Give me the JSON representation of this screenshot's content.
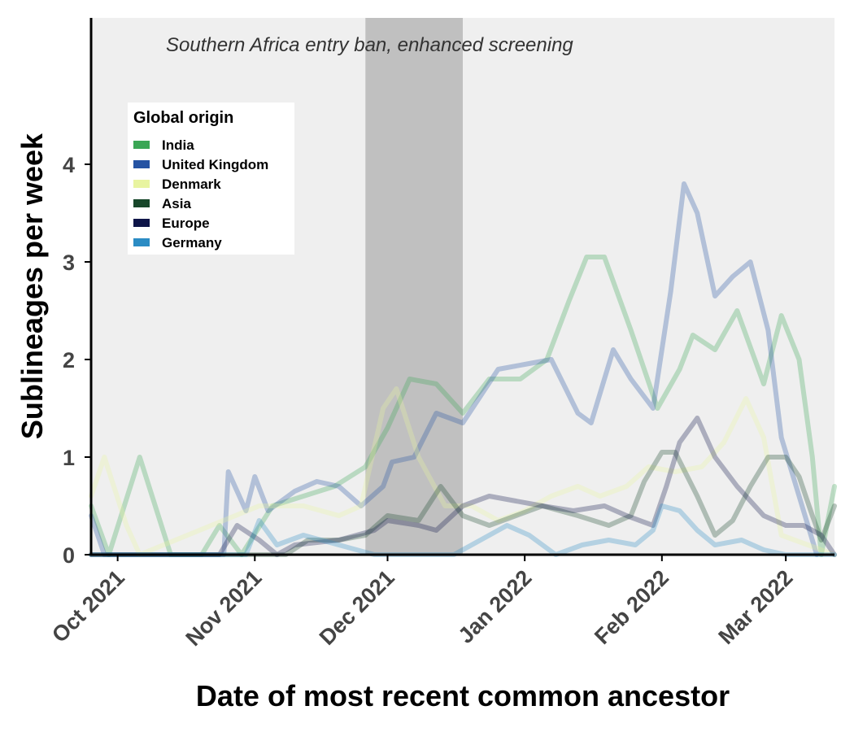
{
  "chart_data": {
    "type": "line",
    "title": "",
    "xlabel": "Date of most recent common ancestor",
    "ylabel": "Sublineages per week",
    "x_range": [
      "2021-09-25",
      "2022-03-12"
    ],
    "ylim": [
      0,
      5.5
    ],
    "y_ticks": [
      0,
      1,
      2,
      3,
      4
    ],
    "x_ticks": [
      {
        "date": "2021-10-01",
        "label": "Oct 2021"
      },
      {
        "date": "2021-11-01",
        "label": "Nov 2021"
      },
      {
        "date": "2021-12-01",
        "label": "Dec 2021"
      },
      {
        "date": "2022-01-01",
        "label": "Jan 2022"
      },
      {
        "date": "2022-02-01",
        "label": "Feb 2022"
      },
      {
        "date": "2022-03-01",
        "label": "Mar 2022"
      }
    ],
    "grid": false,
    "annotation": {
      "text": "Southern Africa entry ban, enhanced screening",
      "shaded_start": "2021-11-26",
      "shaded_end": "2021-12-18"
    },
    "legend_title": "Global origin",
    "legend_position": "top-left",
    "series": [
      {
        "name": "India",
        "color": "#3aa655",
        "points": [
          [
            "2021-09-25",
            0.5
          ],
          [
            "2021-09-29",
            0.0
          ],
          [
            "2021-10-06",
            1.0
          ],
          [
            "2021-10-13",
            0.0
          ],
          [
            "2021-10-20",
            0.0
          ],
          [
            "2021-10-24",
            0.3
          ],
          [
            "2021-10-29",
            0.0
          ],
          [
            "2021-11-05",
            0.5
          ],
          [
            "2021-11-12",
            0.6
          ],
          [
            "2021-11-19",
            0.7
          ],
          [
            "2021-11-26",
            0.9
          ],
          [
            "2021-12-01",
            1.3
          ],
          [
            "2021-12-06",
            1.8
          ],
          [
            "2021-12-12",
            1.75
          ],
          [
            "2021-12-18",
            1.45
          ],
          [
            "2021-12-24",
            1.8
          ],
          [
            "2021-12-31",
            1.8
          ],
          [
            "2022-01-06",
            2.0
          ],
          [
            "2022-01-11",
            2.6
          ],
          [
            "2022-01-15",
            3.05
          ],
          [
            "2022-01-19",
            3.05
          ],
          [
            "2022-01-25",
            2.3
          ],
          [
            "2022-01-31",
            1.5
          ],
          [
            "2022-02-05",
            1.9
          ],
          [
            "2022-02-08",
            2.25
          ],
          [
            "2022-02-13",
            2.1
          ],
          [
            "2022-02-18",
            2.5
          ],
          [
            "2022-02-24",
            1.75
          ],
          [
            "2022-02-28",
            2.45
          ],
          [
            "2022-03-04",
            2.0
          ],
          [
            "2022-03-07",
            1.0
          ],
          [
            "2022-03-09",
            0.0
          ],
          [
            "2022-03-12",
            0.7
          ]
        ]
      },
      {
        "name": "United Kingdom",
        "color": "#2553a3",
        "points": [
          [
            "2021-09-25",
            0.4
          ],
          [
            "2021-09-28",
            0.0
          ],
          [
            "2021-10-25",
            0.0
          ],
          [
            "2021-10-26",
            0.85
          ],
          [
            "2021-10-30",
            0.45
          ],
          [
            "2021-11-01",
            0.8
          ],
          [
            "2021-11-04",
            0.45
          ],
          [
            "2021-11-10",
            0.65
          ],
          [
            "2021-11-15",
            0.75
          ],
          [
            "2021-11-20",
            0.7
          ],
          [
            "2021-11-25",
            0.5
          ],
          [
            "2021-11-30",
            0.7
          ],
          [
            "2021-12-02",
            0.95
          ],
          [
            "2021-12-07",
            1.0
          ],
          [
            "2021-12-12",
            1.45
          ],
          [
            "2021-12-18",
            1.35
          ],
          [
            "2021-12-26",
            1.9
          ],
          [
            "2022-01-01",
            1.95
          ],
          [
            "2022-01-07",
            2.0
          ],
          [
            "2022-01-13",
            1.45
          ],
          [
            "2022-01-16",
            1.35
          ],
          [
            "2022-01-21",
            2.1
          ],
          [
            "2022-01-25",
            1.8
          ],
          [
            "2022-01-30",
            1.5
          ],
          [
            "2022-02-03",
            2.7
          ],
          [
            "2022-02-06",
            3.8
          ],
          [
            "2022-02-09",
            3.5
          ],
          [
            "2022-02-13",
            2.65
          ],
          [
            "2022-02-17",
            2.85
          ],
          [
            "2022-02-21",
            3.0
          ],
          [
            "2022-02-25",
            2.3
          ],
          [
            "2022-02-28",
            1.2
          ],
          [
            "2022-03-04",
            0.6
          ],
          [
            "2022-03-08",
            0.0
          ]
        ]
      },
      {
        "name": "Denmark",
        "color": "#e8f4a0",
        "points": [
          [
            "2021-09-25",
            0.6
          ],
          [
            "2021-09-28",
            1.0
          ],
          [
            "2021-10-03",
            0.3
          ],
          [
            "2021-10-06",
            0.0
          ],
          [
            "2021-11-02",
            0.5
          ],
          [
            "2021-11-12",
            0.5
          ],
          [
            "2021-11-20",
            0.4
          ],
          [
            "2021-11-25",
            0.5
          ],
          [
            "2021-11-30",
            1.5
          ],
          [
            "2021-12-03",
            1.7
          ],
          [
            "2021-12-08",
            1.0
          ],
          [
            "2021-12-14",
            0.5
          ],
          [
            "2021-12-20",
            0.5
          ],
          [
            "2021-12-26",
            0.35
          ],
          [
            "2022-01-01",
            0.45
          ],
          [
            "2022-01-07",
            0.6
          ],
          [
            "2022-01-13",
            0.7
          ],
          [
            "2022-01-18",
            0.6
          ],
          [
            "2022-01-24",
            0.7
          ],
          [
            "2022-01-29",
            0.9
          ],
          [
            "2022-02-04",
            0.85
          ],
          [
            "2022-02-10",
            0.9
          ],
          [
            "2022-02-15",
            1.15
          ],
          [
            "2022-02-20",
            1.6
          ],
          [
            "2022-02-24",
            1.2
          ],
          [
            "2022-02-28",
            0.2
          ],
          [
            "2022-03-06",
            0.1
          ],
          [
            "2022-03-12",
            0.0
          ]
        ]
      },
      {
        "name": "Asia",
        "color": "#17472a",
        "points": [
          [
            "2021-09-25",
            0.0
          ],
          [
            "2021-11-08",
            0.0
          ],
          [
            "2021-11-13",
            0.15
          ],
          [
            "2021-11-20",
            0.15
          ],
          [
            "2021-11-26",
            0.2
          ],
          [
            "2021-12-01",
            0.4
          ],
          [
            "2021-12-08",
            0.35
          ],
          [
            "2021-12-13",
            0.7
          ],
          [
            "2021-12-18",
            0.4
          ],
          [
            "2021-12-24",
            0.3
          ],
          [
            "2021-12-30",
            0.4
          ],
          [
            "2022-01-05",
            0.5
          ],
          [
            "2022-01-13",
            0.4
          ],
          [
            "2022-01-20",
            0.3
          ],
          [
            "2022-01-25",
            0.4
          ],
          [
            "2022-01-28",
            0.75
          ],
          [
            "2022-02-01",
            1.05
          ],
          [
            "2022-02-04",
            1.05
          ],
          [
            "2022-02-09",
            0.6
          ],
          [
            "2022-02-13",
            0.2
          ],
          [
            "2022-02-17",
            0.35
          ],
          [
            "2022-02-21",
            0.7
          ],
          [
            "2022-02-25",
            1.0
          ],
          [
            "2022-03-01",
            1.0
          ],
          [
            "2022-03-04",
            0.8
          ],
          [
            "2022-03-07",
            0.4
          ],
          [
            "2022-03-09",
            0.15
          ],
          [
            "2022-03-12",
            0.5
          ]
        ]
      },
      {
        "name": "Europe",
        "color": "#0e1548",
        "points": [
          [
            "2021-09-25",
            0.0
          ],
          [
            "2021-10-24",
            0.0
          ],
          [
            "2021-10-28",
            0.3
          ],
          [
            "2021-11-02",
            0.15
          ],
          [
            "2021-11-06",
            0.0
          ],
          [
            "2021-11-10",
            0.1
          ],
          [
            "2021-11-20",
            0.15
          ],
          [
            "2021-11-28",
            0.25
          ],
          [
            "2021-12-01",
            0.35
          ],
          [
            "2021-12-08",
            0.3
          ],
          [
            "2021-12-12",
            0.25
          ],
          [
            "2021-12-18",
            0.5
          ],
          [
            "2021-12-24",
            0.6
          ],
          [
            "2021-12-30",
            0.55
          ],
          [
            "2022-01-05",
            0.5
          ],
          [
            "2022-01-12",
            0.45
          ],
          [
            "2022-01-19",
            0.5
          ],
          [
            "2022-01-24",
            0.4
          ],
          [
            "2022-01-30",
            0.3
          ],
          [
            "2022-02-02",
            0.7
          ],
          [
            "2022-02-05",
            1.15
          ],
          [
            "2022-02-09",
            1.4
          ],
          [
            "2022-02-13",
            1.0
          ],
          [
            "2022-02-18",
            0.7
          ],
          [
            "2022-02-24",
            0.4
          ],
          [
            "2022-03-01",
            0.3
          ],
          [
            "2022-03-05",
            0.3
          ],
          [
            "2022-03-09",
            0.2
          ],
          [
            "2022-03-12",
            0.0
          ]
        ]
      },
      {
        "name": "Germany",
        "color": "#2b8cc4",
        "points": [
          [
            "2021-09-25",
            0.0
          ],
          [
            "2021-10-30",
            0.0
          ],
          [
            "2021-11-02",
            0.35
          ],
          [
            "2021-11-06",
            0.1
          ],
          [
            "2021-11-12",
            0.2
          ],
          [
            "2021-11-20",
            0.1
          ],
          [
            "2021-11-28",
            0.0
          ],
          [
            "2021-12-16",
            0.0
          ],
          [
            "2021-12-22",
            0.15
          ],
          [
            "2021-12-28",
            0.3
          ],
          [
            "2022-01-02",
            0.2
          ],
          [
            "2022-01-08",
            0.0
          ],
          [
            "2022-01-14",
            0.1
          ],
          [
            "2022-01-20",
            0.15
          ],
          [
            "2022-01-26",
            0.1
          ],
          [
            "2022-01-30",
            0.25
          ],
          [
            "2022-02-01",
            0.5
          ],
          [
            "2022-02-05",
            0.45
          ],
          [
            "2022-02-09",
            0.25
          ],
          [
            "2022-02-13",
            0.1
          ],
          [
            "2022-02-19",
            0.15
          ],
          [
            "2022-02-24",
            0.05
          ],
          [
            "2022-03-01",
            0.0
          ],
          [
            "2022-03-12",
            0.0
          ]
        ]
      }
    ]
  }
}
